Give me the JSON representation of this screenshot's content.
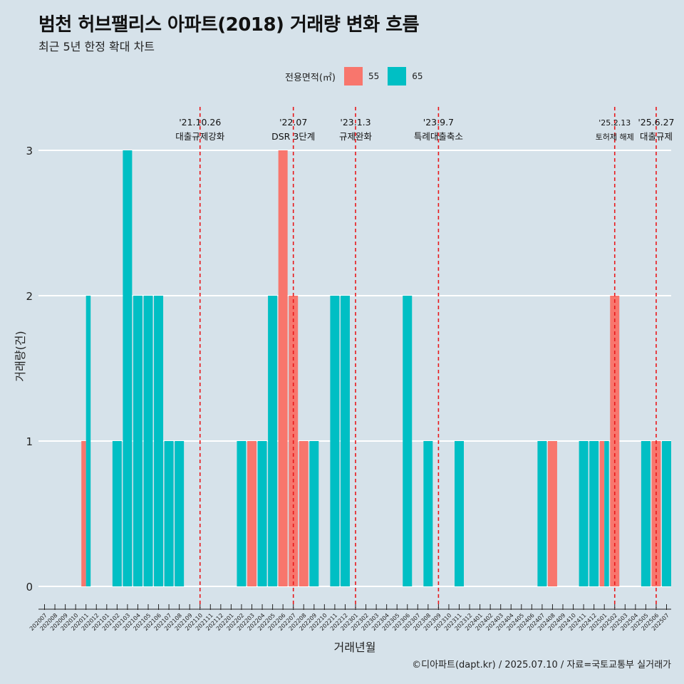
{
  "title": "범천 허브팰리스 아파트(2018) 거래량 변화 흐름",
  "subtitle": "최근 5년 한정 확대 차트",
  "caption": "©디아파트(dapt.kr) / 2025.07.10 / 자료=국토교통부 실거래가",
  "legend": {
    "title": "전용면적(㎡)",
    "items": [
      {
        "label": "55",
        "color": "#f8766d"
      },
      {
        "label": "65",
        "color": "#00bfc4"
      }
    ]
  },
  "chart_data": {
    "type": "bar",
    "xlabel": "거래년월",
    "ylabel": "거래량(건)",
    "ylim": [
      0,
      3
    ],
    "y_ticks": [
      0,
      1,
      2,
      3
    ],
    "grid": "horizontal",
    "categories": [
      "202007",
      "202008",
      "202009",
      "202010",
      "202011",
      "202012",
      "202101",
      "202102",
      "202103",
      "202104",
      "202105",
      "202106",
      "202107",
      "202108",
      "202109",
      "202110",
      "202111",
      "202112",
      "202201",
      "202202",
      "202203",
      "202204",
      "202205",
      "202206",
      "202207",
      "202208",
      "202209",
      "202210",
      "202211",
      "202212",
      "202301",
      "202302",
      "202303",
      "202304",
      "202305",
      "202306",
      "202307",
      "202308",
      "202309",
      "202310",
      "202311",
      "202312",
      "202401",
      "202402",
      "202403",
      "202404",
      "202405",
      "202406",
      "202407",
      "202408",
      "202409",
      "202410",
      "202411",
      "202412",
      "202501",
      "202502",
      "202503",
      "202504",
      "202505",
      "202506",
      "202507"
    ],
    "series": [
      {
        "name": "55",
        "color": "#f8766d",
        "values": [
          0,
          0,
          0,
          0,
          1,
          0,
          0,
          0,
          0,
          0,
          0,
          0,
          0,
          0,
          0,
          0,
          0,
          0,
          0,
          0,
          1,
          0,
          0,
          3,
          2,
          1,
          0,
          0,
          0,
          0,
          0,
          0,
          0,
          0,
          0,
          0,
          0,
          0,
          0,
          0,
          0,
          0,
          0,
          0,
          0,
          0,
          0,
          0,
          0,
          1,
          0,
          0,
          0,
          0,
          1,
          2,
          0,
          0,
          0,
          1,
          0
        ]
      },
      {
        "name": "65",
        "color": "#00bfc4",
        "values": [
          0,
          0,
          0,
          0,
          2,
          0,
          0,
          1,
          3,
          2,
          2,
          2,
          1,
          1,
          0,
          0,
          0,
          0,
          0,
          1,
          0,
          1,
          2,
          0,
          0,
          0,
          1,
          0,
          2,
          2,
          0,
          0,
          0,
          0,
          0,
          2,
          0,
          1,
          0,
          0,
          1,
          0,
          0,
          0,
          0,
          0,
          0,
          0,
          1,
          0,
          0,
          0,
          1,
          1,
          1,
          0,
          0,
          0,
          1,
          0,
          1
        ]
      }
    ],
    "annotations": [
      {
        "x": "202110",
        "date": "'21.10.26",
        "text": "대출규제강화"
      },
      {
        "x": "202207",
        "date": "'22.07",
        "text": "DSR 3단계"
      },
      {
        "x": "202301",
        "date": "'23.1.3",
        "text": "규제완화"
      },
      {
        "x": "202309",
        "date": "'23.9.7",
        "text": "특례대출축소"
      },
      {
        "x": "202502",
        "date": "'25.2.13",
        "text": "토허제 해제"
      },
      {
        "x": "202506",
        "date": "'25.6.27",
        "text": "대출규제"
      }
    ]
  }
}
